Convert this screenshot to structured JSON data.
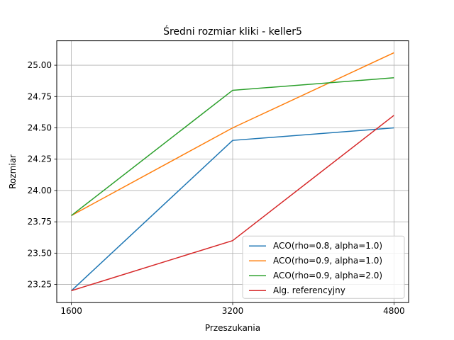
{
  "chart_data": {
    "type": "line",
    "title": "Średni rozmiar kliki - keller5",
    "xlabel": "Przeszukania",
    "ylabel": "Rozmiar",
    "x": [
      1600,
      3200,
      4800
    ],
    "x_tick_labels": [
      "1600",
      "3200",
      "4800"
    ],
    "xlim": [
      1455,
      4945
    ],
    "ylim": [
      23.105,
      25.195
    ],
    "y_ticks": [
      23.25,
      23.5,
      23.75,
      24.0,
      24.25,
      24.5,
      24.75,
      25.0
    ],
    "y_tick_labels": [
      "23.25",
      "23.50",
      "23.75",
      "24.00",
      "24.25",
      "24.50",
      "24.75",
      "25.00"
    ],
    "grid": true,
    "legend_position": "lower-right",
    "series": [
      {
        "name": "ACO(rho=0.8, alpha=1.0)",
        "color": "#1f77b4",
        "values": [
          23.2,
          24.4,
          24.5
        ]
      },
      {
        "name": "ACO(rho=0.9, alpha=1.0)",
        "color": "#ff7f0e",
        "values": [
          23.8,
          24.5,
          25.1
        ]
      },
      {
        "name": "ACO(rho=0.9, alpha=2.0)",
        "color": "#2ca02c",
        "values": [
          23.8,
          24.8,
          24.9
        ]
      },
      {
        "name": "Alg. referencyjny",
        "color": "#d62728",
        "values": [
          23.2,
          23.6,
          24.6
        ]
      }
    ]
  }
}
